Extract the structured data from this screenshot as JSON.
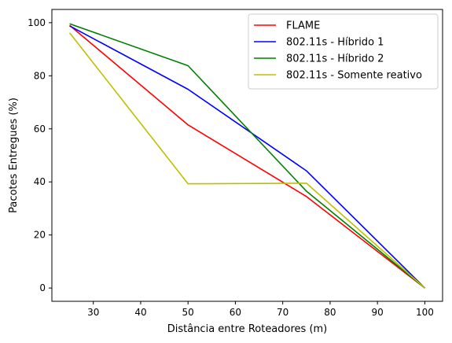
{
  "chart_data": {
    "type": "line",
    "xlabel": "Distância entre Roteadores (m)",
    "ylabel": "Pacotes Entregues (%)",
    "x": [
      25,
      50,
      75,
      100
    ],
    "xlim": [
      21.25,
      103.75
    ],
    "ylim": [
      -5,
      105
    ],
    "xticks": [
      30,
      40,
      50,
      60,
      70,
      80,
      90,
      100
    ],
    "yticks": [
      0,
      20,
      40,
      60,
      80,
      100
    ],
    "grid": false,
    "legend_position": "upper right",
    "series": [
      {
        "name": "FLAME",
        "color": "#ff0000",
        "values": [
          99.0,
          61.5,
          34.5,
          0.0
        ]
      },
      {
        "name": "802.11s - Híbrido 1",
        "color": "#0000ff",
        "values": [
          98.8,
          74.9,
          44.2,
          0.0
        ]
      },
      {
        "name": "802.11s - Híbrido 2",
        "color": "#008000",
        "values": [
          99.6,
          83.8,
          36.5,
          0.0
        ]
      },
      {
        "name": "802.11s - Somente reativo",
        "color": "#bfbf00",
        "values": [
          96.2,
          39.3,
          39.5,
          0.0
        ]
      }
    ]
  }
}
